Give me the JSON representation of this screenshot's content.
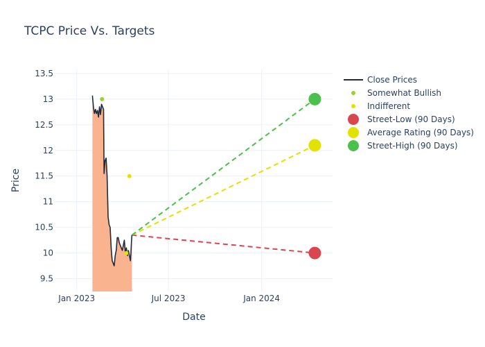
{
  "chart_data": {
    "type": "line",
    "title": "TCPC Price Vs. Targets",
    "xlabel": "Date",
    "ylabel": "Price",
    "ylim": [
      9.25,
      13.58
    ],
    "xlim": [
      "2022-11-20",
      "2024-05-20"
    ],
    "x_ticks": [
      {
        "date": "2023-01-01",
        "label": "Jan 2023"
      },
      {
        "date": "2023-07-01",
        "label": "Jul 2023"
      },
      {
        "date": "2024-01-01",
        "label": "Jan 2024"
      }
    ],
    "y_ticks": [
      {
        "value": 9.5,
        "label": "9.5"
      },
      {
        "value": 10,
        "label": "10"
      },
      {
        "value": 10.5,
        "label": "10.5"
      },
      {
        "value": 11,
        "label": "11"
      },
      {
        "value": 11.5,
        "label": "11.5"
      },
      {
        "value": 12,
        "label": "12"
      },
      {
        "value": 12.5,
        "label": "12.5"
      },
      {
        "value": 13,
        "label": "13"
      },
      {
        "value": 13.5,
        "label": "13.5"
      }
    ],
    "close_prices": {
      "name": "Close Prices",
      "color": "#1f2b3d",
      "fill_color": "#f9b48f",
      "points": [
        [
          "2023-02-01",
          13.07
        ],
        [
          "2023-02-03",
          12.85
        ],
        [
          "2023-02-05",
          12.72
        ],
        [
          "2023-02-07",
          12.8
        ],
        [
          "2023-02-09",
          12.72
        ],
        [
          "2023-02-11",
          12.78
        ],
        [
          "2023-02-13",
          12.65
        ],
        [
          "2023-02-15",
          12.85
        ],
        [
          "2023-02-17",
          12.7
        ],
        [
          "2023-02-19",
          12.9
        ],
        [
          "2023-02-21",
          12.85
        ],
        [
          "2023-02-23",
          12.8
        ],
        [
          "2023-02-24",
          11.55
        ],
        [
          "2023-02-26",
          11.8
        ],
        [
          "2023-02-28",
          11.85
        ],
        [
          "2023-03-02",
          11.5
        ],
        [
          "2023-03-04",
          10.7
        ],
        [
          "2023-03-06",
          10.55
        ],
        [
          "2023-03-08",
          10.5
        ],
        [
          "2023-03-10",
          10.1
        ],
        [
          "2023-03-12",
          9.85
        ],
        [
          "2023-03-14",
          9.8
        ],
        [
          "2023-03-16",
          9.75
        ],
        [
          "2023-03-18",
          9.95
        ],
        [
          "2023-03-20",
          10.05
        ],
        [
          "2023-03-22",
          10.3
        ],
        [
          "2023-03-24",
          10.3
        ],
        [
          "2023-03-26",
          10.2
        ],
        [
          "2023-03-28",
          10.15
        ],
        [
          "2023-03-30",
          10.1
        ],
        [
          "2023-04-01",
          10.05
        ],
        [
          "2023-04-03",
          10.15
        ],
        [
          "2023-04-05",
          10.25
        ],
        [
          "2023-04-07",
          10.0
        ],
        [
          "2023-04-09",
          10.1
        ],
        [
          "2023-04-11",
          9.95
        ],
        [
          "2023-04-13",
          10.05
        ],
        [
          "2023-04-15",
          9.95
        ],
        [
          "2023-04-17",
          9.85
        ],
        [
          "2023-04-18",
          10.0
        ],
        [
          "2023-04-19",
          10.2
        ],
        [
          "2023-04-20",
          10.35
        ]
      ]
    },
    "ratings": [
      {
        "name": "Somewhat Bullish",
        "color": "#97d22d",
        "points": [
          [
            "2023-02-20",
            13.0
          ]
        ]
      },
      {
        "name": "Indifferent",
        "color": "#e2e200",
        "points": [
          [
            "2023-04-15",
            11.5
          ],
          [
            "2023-04-09",
            10.0
          ]
        ]
      }
    ],
    "targets": {
      "start": [
        "2023-04-20",
        10.35
      ],
      "end_date": "2024-04-15",
      "lines": [
        {
          "name": "Street-Low (90 Days)",
          "value": 10.0,
          "color": "#d9474e"
        },
        {
          "name": "Average Rating (90 Days)",
          "value": 12.1,
          "color": "#e2e200"
        },
        {
          "name": "Street-High (90 Days)",
          "value": 13.0,
          "color": "#4cc04c"
        }
      ]
    },
    "legend": [
      {
        "label": "Close Prices",
        "kind": "line",
        "color": "#1f2b3d"
      },
      {
        "label": "Somewhat Bullish",
        "kind": "small-dot",
        "color": "#97d22d"
      },
      {
        "label": "Indifferent",
        "kind": "small-dot",
        "color": "#e2e200"
      },
      {
        "label": "Street-Low (90 Days)",
        "kind": "big-dot",
        "color": "#d9474e"
      },
      {
        "label": "Average Rating (90 Days)",
        "kind": "big-dot",
        "color": "#e2e200"
      },
      {
        "label": "Street-High (90 Days)",
        "kind": "big-dot",
        "color": "#4cc04c"
      }
    ],
    "legend_position": "top-right"
  }
}
